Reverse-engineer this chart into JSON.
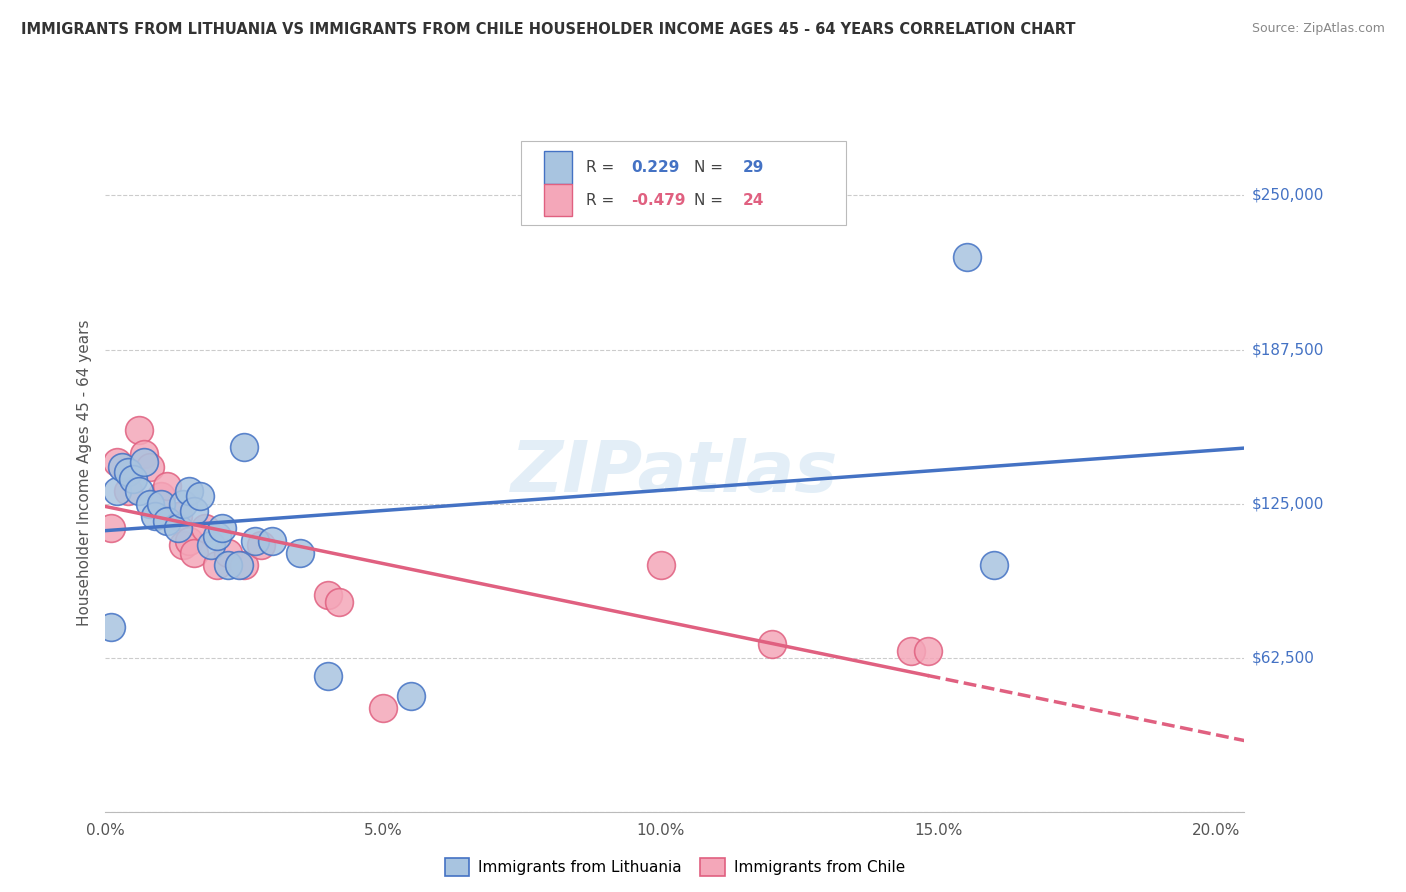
{
  "title": "IMMIGRANTS FROM LITHUANIA VS IMMIGRANTS FROM CHILE HOUSEHOLDER INCOME AGES 45 - 64 YEARS CORRELATION CHART",
  "source": "Source: ZipAtlas.com",
  "xlabel_ticks": [
    "0.0%",
    "5.0%",
    "10.0%",
    "15.0%",
    "20.0%"
  ],
  "xlabel_vals": [
    0.0,
    0.05,
    0.1,
    0.15,
    0.2
  ],
  "ylabel": "Householder Income Ages 45 - 64 years",
  "ylabel_ticks": [
    0,
    62500,
    125000,
    187500,
    250000
  ],
  "ylabel_right_labels": [
    "",
    "$62,500",
    "$125,000",
    "$187,500",
    "$250,000"
  ],
  "xmin": 0.0,
  "xmax": 0.205,
  "ymin": 0,
  "ymax": 275000,
  "R_blue": 0.229,
  "N_blue": 29,
  "R_pink": -0.479,
  "N_pink": 24,
  "blue_x": [
    0.001,
    0.002,
    0.003,
    0.004,
    0.005,
    0.006,
    0.007,
    0.008,
    0.009,
    0.01,
    0.011,
    0.013,
    0.014,
    0.015,
    0.016,
    0.017,
    0.019,
    0.02,
    0.021,
    0.022,
    0.024,
    0.025,
    0.027,
    0.03,
    0.035,
    0.04,
    0.055,
    0.155,
    0.16
  ],
  "blue_y": [
    75000,
    130000,
    140000,
    138000,
    135000,
    130000,
    142000,
    125000,
    120000,
    125000,
    118000,
    115000,
    125000,
    130000,
    122000,
    128000,
    108000,
    112000,
    115000,
    100000,
    100000,
    148000,
    110000,
    110000,
    105000,
    55000,
    47000,
    225000,
    100000
  ],
  "pink_x": [
    0.001,
    0.002,
    0.004,
    0.006,
    0.007,
    0.008,
    0.01,
    0.011,
    0.013,
    0.014,
    0.015,
    0.016,
    0.018,
    0.02,
    0.022,
    0.025,
    0.028,
    0.04,
    0.042,
    0.05,
    0.1,
    0.12,
    0.145,
    0.148
  ],
  "pink_y": [
    115000,
    142000,
    130000,
    155000,
    145000,
    140000,
    128000,
    132000,
    120000,
    108000,
    110000,
    105000,
    115000,
    100000,
    105000,
    100000,
    108000,
    88000,
    85000,
    42000,
    100000,
    68000,
    65000,
    65000
  ],
  "blue_fill": "#a8c4e0",
  "blue_edge": "#4472c4",
  "pink_fill": "#f4a7b9",
  "pink_edge": "#e06080",
  "blue_line": "#4472c4",
  "pink_line": "#e06080",
  "watermark": "ZIPatlas",
  "legend_blue": "Immigrants from Lithuania",
  "legend_pink": "Immigrants from Chile",
  "bg": "#ffffff",
  "grid_color": "#cccccc"
}
